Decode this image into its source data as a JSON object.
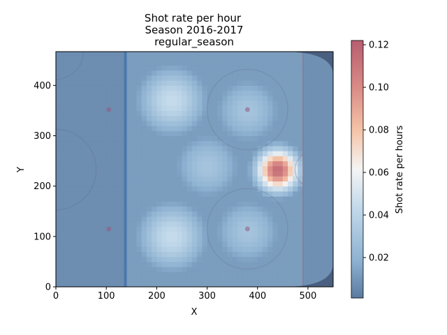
{
  "chart_data": {
    "type": "heatmap",
    "title_lines": [
      "Shot rate per hour",
      "Season 2016-2017",
      "regular_season"
    ],
    "xlabel": "X",
    "ylabel": "Y",
    "xlim": [
      0,
      550
    ],
    "ylim": [
      0,
      467
    ],
    "xticks": [
      0,
      100,
      200,
      300,
      400,
      500
    ],
    "yticks": [
      0,
      100,
      200,
      300,
      400
    ],
    "colorbar": {
      "label": "Shot rate per hours",
      "range": [
        0.001,
        0.122
      ],
      "ticks": [
        "0.02",
        "0.04",
        "0.06",
        "0.08",
        "0.10",
        "0.12"
      ],
      "tick_values": [
        0.02,
        0.04,
        0.06,
        0.08,
        0.1,
        0.12
      ],
      "colormap": "RdBu_r"
    },
    "grid": false,
    "background": "hockey rink half (offensive zone)",
    "hotspots": [
      {
        "x": 440,
        "y": 232,
        "value": 0.115,
        "note": "slot in front of net"
      },
      {
        "x": 230,
        "y": 370,
        "value": 0.045
      },
      {
        "x": 230,
        "y": 100,
        "value": 0.045
      },
      {
        "x": 300,
        "y": 240,
        "value": 0.03
      },
      {
        "x": 380,
        "y": 350,
        "value": 0.03
      },
      {
        "x": 380,
        "y": 110,
        "value": 0.03
      }
    ],
    "base_value": 0.012,
    "low_value_x_below": 140
  }
}
